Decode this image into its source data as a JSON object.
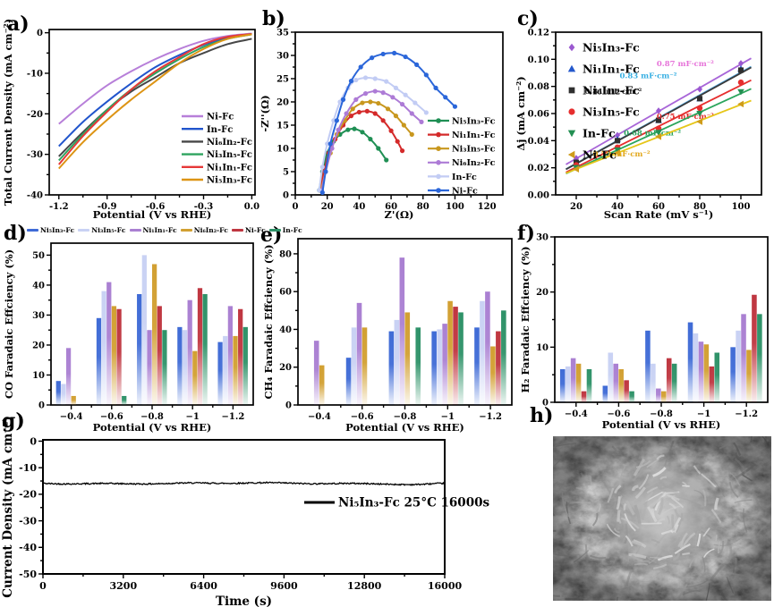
{
  "figure": {
    "background": "#ffffff"
  },
  "chart_data": [
    {
      "id": "a",
      "panel_label": "a)",
      "type": "line",
      "xlabel": "Potential (V vs RHE)",
      "ylabel": "Total Current Density (mA cm⁻²)",
      "xlim": [
        -1.26,
        0.02
      ],
      "ylim": [
        -40,
        0.8
      ],
      "xtick_values": [
        -1.2,
        -0.9,
        -0.6,
        -0.3,
        0.0
      ],
      "xtick_labels": [
        "-1.2",
        "-0.9",
        "-0.6",
        "-0.3",
        "0.0"
      ],
      "ytick_values": [
        0,
        -10,
        -20,
        -30,
        -40
      ],
      "ytick_labels": [
        "0",
        "-10",
        "-20",
        "-30",
        "-40"
      ],
      "x": [
        -1.2,
        -1.05,
        -0.9,
        -0.75,
        -0.6,
        -0.45,
        -0.3,
        -0.15,
        0.0
      ],
      "series": [
        {
          "name": "Ni-Fc",
          "color": "#b77fd9",
          "y": [
            -22.5,
            -17.5,
            -13.0,
            -9.5,
            -6.5,
            -4.0,
            -2.0,
            -0.8,
            -0.2
          ]
        },
        {
          "name": "In-Fc",
          "color": "#2155cc",
          "y": [
            -28.0,
            -22.0,
            -17.0,
            -12.5,
            -8.5,
            -5.5,
            -3.0,
            -1.2,
            -0.3
          ]
        },
        {
          "name": "Ni₆In₂-Fc",
          "color": "#474747",
          "y": [
            -30.5,
            -24.5,
            -19.0,
            -14.5,
            -11.0,
            -7.5,
            -5.0,
            -2.8,
            -1.5
          ]
        },
        {
          "name": "Ni₃In₅-Fc",
          "color": "#2ea35f",
          "y": [
            -31.5,
            -25.0,
            -19.0,
            -14.0,
            -10.0,
            -6.5,
            -3.5,
            -1.5,
            -0.4
          ]
        },
        {
          "name": "Ni₁In₁-Fc",
          "color": "#e63838",
          "y": [
            -32.5,
            -25.5,
            -19.5,
            -14.0,
            -9.5,
            -6.0,
            -2.8,
            -1.0,
            -0.3
          ]
        },
        {
          "name": "Ni₅In₃-Fc",
          "color": "#dd9414",
          "y": [
            -33.5,
            -27.0,
            -21.5,
            -16.5,
            -12.0,
            -7.5,
            -4.0,
            -1.5,
            -0.4
          ]
        }
      ],
      "legend_position": "right-middle"
    },
    {
      "id": "b",
      "panel_label": "b)",
      "type": "scatter-line",
      "xlabel": "Z'(Ω)",
      "ylabel": "-Z''(Ω)",
      "xlim": [
        0,
        130
      ],
      "ylim": [
        0,
        35
      ],
      "xtick_values": [
        0,
        20,
        40,
        60,
        80,
        100,
        120
      ],
      "xtick_labels": [
        "0",
        "20",
        "40",
        "60",
        "80",
        "100",
        "120"
      ],
      "ytick_values": [
        0,
        5,
        10,
        15,
        20,
        25,
        30,
        35
      ],
      "ytick_labels": [
        "0",
        "5",
        "10",
        "15",
        "20",
        "25",
        "30",
        "35"
      ],
      "series": [
        {
          "name": "Ni₅In₃-Fc",
          "color": "#1f8f54",
          "points": [
            [
              15,
              1
            ],
            [
              17,
              5
            ],
            [
              20,
              9
            ],
            [
              24,
              11.5
            ],
            [
              28,
              13
            ],
            [
              33,
              14
            ],
            [
              37,
              14.2
            ],
            [
              42,
              13.5
            ],
            [
              47,
              12
            ],
            [
              52,
              10
            ],
            [
              57,
              7.5
            ]
          ]
        },
        {
          "name": "Ni₁In₁-Fc",
          "color": "#d42a2a",
          "points": [
            [
              15.5,
              1
            ],
            [
              18,
              5
            ],
            [
              21,
              9
            ],
            [
              25,
              12
            ],
            [
              30,
              15
            ],
            [
              35,
              17
            ],
            [
              40,
              17.8
            ],
            [
              45,
              18
            ],
            [
              50,
              17.5
            ],
            [
              55,
              16
            ],
            [
              60,
              13.8
            ],
            [
              64,
              11.5
            ],
            [
              67,
              9.5
            ]
          ]
        },
        {
          "name": "Ni₃In₅-Fc",
          "color": "#c8971e",
          "points": [
            [
              16,
              1
            ],
            [
              19,
              5
            ],
            [
              22,
              9
            ],
            [
              26,
              13
            ],
            [
              31,
              16
            ],
            [
              36,
              18.5
            ],
            [
              42,
              19.8
            ],
            [
              47,
              20
            ],
            [
              52,
              19.7
            ],
            [
              58,
              18.5
            ],
            [
              63,
              17
            ],
            [
              68,
              15
            ],
            [
              73,
              13
            ]
          ]
        },
        {
          "name": "Ni₆In₂-Fc",
          "color": "#ad7bd6",
          "points": [
            [
              16.5,
              1
            ],
            [
              19,
              5
            ],
            [
              23,
              10
            ],
            [
              27,
              14
            ],
            [
              32,
              17.5
            ],
            [
              38,
              20.5
            ],
            [
              44,
              21.8
            ],
            [
              50,
              22.3
            ],
            [
              55,
              22
            ],
            [
              61,
              21
            ],
            [
              67,
              19.5
            ],
            [
              73,
              17.5
            ],
            [
              79,
              15.7
            ]
          ]
        },
        {
          "name": "In-Fc",
          "color": "#c2ccf4",
          "points": [
            [
              15,
              1
            ],
            [
              17,
              6
            ],
            [
              20,
              11
            ],
            [
              24,
              16
            ],
            [
              28,
              20
            ],
            [
              33,
              23
            ],
            [
              38,
              24.7
            ],
            [
              44,
              25.2
            ],
            [
              50,
              25
            ],
            [
              57,
              24.4
            ],
            [
              63,
              23
            ],
            [
              69,
              21.5
            ],
            [
              75,
              19.8
            ],
            [
              82,
              17.7
            ]
          ]
        },
        {
          "name": "Ni-Fc",
          "color": "#2b66d9",
          "points": [
            [
              17,
              0.5
            ],
            [
              19,
              5
            ],
            [
              22,
              11
            ],
            [
              26,
              16
            ],
            [
              30,
              20.5
            ],
            [
              35,
              24.5
            ],
            [
              41,
              27.5
            ],
            [
              48,
              29.5
            ],
            [
              55,
              30.3
            ],
            [
              62,
              30.5
            ],
            [
              69,
              29.7
            ],
            [
              76,
              28
            ],
            [
              82,
              25.8
            ],
            [
              88,
              23
            ],
            [
              94,
              21
            ],
            [
              100,
              19
            ]
          ]
        }
      ],
      "legend_position": "bottom-right"
    },
    {
      "id": "c",
      "panel_label": "c)",
      "type": "scatter",
      "xlabel": "Scan Rate (mV s⁻¹)",
      "ylabel": "Δj (mA cm⁻²)",
      "xlim": [
        10,
        110
      ],
      "ylim": [
        0,
        0.12
      ],
      "xtick_values": [
        20,
        40,
        60,
        80,
        100
      ],
      "xtick_labels": [
        "20",
        "40",
        "60",
        "80",
        "100"
      ],
      "ytick_values": [
        0.0,
        0.02,
        0.04,
        0.06,
        0.08,
        0.1,
        0.12
      ],
      "ytick_labels": [
        "0.00",
        "0.02",
        "0.04",
        "0.06",
        "0.08",
        "0.10",
        "0.12"
      ],
      "x": [
        20,
        40,
        60,
        80,
        100
      ],
      "series": [
        {
          "name": "Ni₅In₃-Fc",
          "marker": "diamond",
          "marker_color": "#9b59d0",
          "line_color": "#a866d8",
          "values": [
            0.027,
            0.044,
            0.062,
            0.078,
            0.097
          ],
          "annotation": "0.87 mF·cm⁻²",
          "annotation_color": "#e673d9",
          "annotation_pos": [
            73,
            0.095
          ]
        },
        {
          "name": "Ni₁In₁-Fc",
          "marker": "triangle-up",
          "marker_color": "#2458cc",
          "line_color": "#54aae2",
          "values": [
            0.024,
            0.041,
            0.055,
            0.071,
            0.093
          ],
          "annotation": "0.83 mF·cm⁻²",
          "annotation_color": "#35aee2",
          "annotation_pos": [
            55,
            0.086
          ]
        },
        {
          "name": "Ni₆In₂-Fc",
          "marker": "square",
          "marker_color": "#2f2f2f",
          "line_color": "#3a3a3a",
          "values": [
            0.024,
            0.04,
            0.055,
            0.071,
            0.092
          ],
          "annotation": "0.81 mF·cm⁻²",
          "annotation_color": "#2f2f2f",
          "annotation_pos": [
            38,
            0.0745
          ]
        },
        {
          "name": "Ni₃In₅-Fc",
          "marker": "circle",
          "marker_color": "#e62e2e",
          "line_color": "#e62e2e",
          "values": [
            0.022,
            0.035,
            0.049,
            0.064,
            0.083
          ],
          "annotation": "0.75 mF·cm⁻²",
          "annotation_color": "#e02828",
          "annotation_pos": [
            73,
            0.056
          ]
        },
        {
          "name": "In-Fc",
          "marker": "triangle-down",
          "marker_color": "#238f52",
          "line_color": "#2ba55c",
          "values": [
            0.02,
            0.033,
            0.046,
            0.06,
            0.076
          ],
          "annotation": "0.68 mF·cm⁻²",
          "annotation_color": "#2aa35e",
          "annotation_pos": [
            57,
            0.044
          ]
        },
        {
          "name": "Ni-Fc",
          "marker": "triangle-left",
          "marker_color": "#cf9c1a",
          "line_color": "#e6c619",
          "values": [
            0.019,
            0.031,
            0.043,
            0.054,
            0.067
          ],
          "annotation": "0.59 mF·cm⁻²",
          "annotation_color": "#e2a81e",
          "annotation_pos": [
            42,
            0.0285
          ]
        }
      ],
      "legend_position": "top-left"
    },
    {
      "id": "d",
      "panel_label": "d)",
      "type": "bar",
      "xlabel": "Potential (V vs RHE)",
      "ylabel": "CO Faradaic Effciency (%)",
      "categories": [
        "−0.4",
        "−0.6",
        "−0.8",
        "−1",
        "−1.2"
      ],
      "ylim": [
        0,
        54
      ],
      "ytick_values": [
        0,
        10,
        20,
        30,
        40,
        50
      ],
      "ytick_labels": [
        "0",
        "10",
        "20",
        "30",
        "40",
        "50"
      ],
      "series": [
        {
          "name": "Ni₅In₃-Fc",
          "color": "#3f6bd6",
          "values": [
            8,
            29,
            37,
            26,
            21
          ]
        },
        {
          "name": "Ni₃In₅-Fc",
          "color": "#c9d2f4",
          "values": [
            7,
            38,
            50,
            25,
            23
          ]
        },
        {
          "name": "Ni₁In₁-Fc",
          "color": "#aa80d2",
          "values": [
            19,
            41,
            25,
            35,
            33
          ]
        },
        {
          "name": "Ni₆In₂-Fc",
          "color": "#d2a032",
          "values": [
            3,
            33,
            47,
            18,
            23
          ]
        },
        {
          "name": "Ni-Fc",
          "color": "#bf3640",
          "values": [
            0,
            32,
            33,
            39,
            32
          ]
        },
        {
          "name": "In-Fc",
          "color": "#2e9268",
          "values": [
            0,
            3,
            25,
            37,
            26
          ]
        }
      ],
      "legend_position": "top-row"
    },
    {
      "id": "e",
      "panel_label": "e)",
      "type": "bar",
      "xlabel": "Potential (V vs RHE)",
      "ylabel": "CH₄ Faradaic Effciency (%)",
      "categories": [
        "−0.4",
        "−0.6",
        "−0.8",
        "−1",
        "−1.2"
      ],
      "ylim": [
        0,
        88
      ],
      "ytick_values": [
        0,
        20,
        40,
        60,
        80
      ],
      "ytick_labels": [
        "0",
        "20",
        "40",
        "60",
        "80"
      ],
      "series": [
        {
          "name": "Ni₅In₃-Fc",
          "color": "#3f6bd6",
          "values": [
            0,
            25,
            39,
            39,
            41
          ]
        },
        {
          "name": "Ni₃In₅-Fc",
          "color": "#c9d2f4",
          "values": [
            0,
            41,
            45,
            40,
            55
          ]
        },
        {
          "name": "Ni₁In₁-Fc",
          "color": "#aa80d2",
          "values": [
            34,
            54,
            78,
            43,
            60
          ]
        },
        {
          "name": "Ni₆In₂-Fc",
          "color": "#d2a032",
          "values": [
            21,
            41,
            49,
            55,
            31
          ]
        },
        {
          "name": "Ni-Fc",
          "color": "#bf3640",
          "values": [
            0,
            0,
            0,
            52,
            39
          ]
        },
        {
          "name": "In-Fc",
          "color": "#2e9268",
          "values": [
            0,
            0,
            41,
            49,
            50
          ]
        }
      ]
    },
    {
      "id": "f",
      "panel_label": "f)",
      "type": "bar",
      "xlabel": "Potential (V vs RHE)",
      "ylabel": "H₂ Faradaic Effciency (%)",
      "categories": [
        "−0.4",
        "−0.6",
        "−0.8",
        "−1",
        "−1.2"
      ],
      "ylim": [
        0,
        30
      ],
      "ytick_values": [
        0,
        10,
        20,
        30
      ],
      "ytick_labels": [
        "0",
        "10",
        "20",
        "30"
      ],
      "series": [
        {
          "name": "Ni₅In₃-Fc",
          "color": "#3f6bd6",
          "values": [
            6,
            3,
            13,
            14.5,
            10
          ]
        },
        {
          "name": "Ni₃In₅-Fc",
          "color": "#c9d2f4",
          "values": [
            6.5,
            9,
            7,
            12.5,
            13
          ]
        },
        {
          "name": "Ni₁In₁-Fc",
          "color": "#aa80d2",
          "values": [
            8,
            7,
            2.5,
            11,
            16
          ]
        },
        {
          "name": "Ni₆In₂-Fc",
          "color": "#d2a032",
          "values": [
            7,
            6,
            2,
            10.5,
            9.5
          ]
        },
        {
          "name": "Ni-Fc",
          "color": "#bf3640",
          "values": [
            2,
            4,
            8,
            6.5,
            19.5
          ]
        },
        {
          "name": "In-Fc",
          "color": "#2e9268",
          "values": [
            6,
            2,
            7,
            9,
            16
          ]
        }
      ]
    },
    {
      "id": "g",
      "panel_label": "g)",
      "type": "line",
      "xlabel": "Time (s)",
      "ylabel": "Current Density (mA cm⁻²)",
      "xlim": [
        0,
        16000
      ],
      "ylim": [
        -50,
        0.5
      ],
      "xtick_values": [
        0,
        3200,
        6400,
        9600,
        12800,
        16000
      ],
      "xtick_labels": [
        "0",
        "3200",
        "6400",
        "9600",
        "12800",
        "16000"
      ],
      "ytick_values": [
        0,
        -10,
        -20,
        -30,
        -40,
        -50
      ],
      "ytick_labels": [
        "0",
        "-10",
        "-20",
        "-30",
        "-40",
        "-50"
      ],
      "series": [
        {
          "name": "Ni₅In₃-Fc 25°C 16000s",
          "color": "#000000",
          "baseline": -15.9,
          "duration_s": 16000
        }
      ],
      "legend_position": "center-right"
    },
    {
      "id": "h",
      "panel_label": "h)",
      "type": "image",
      "description": "SEM micrograph: flower-like nanosheet microsphere on porous nanosheet film"
    }
  ]
}
